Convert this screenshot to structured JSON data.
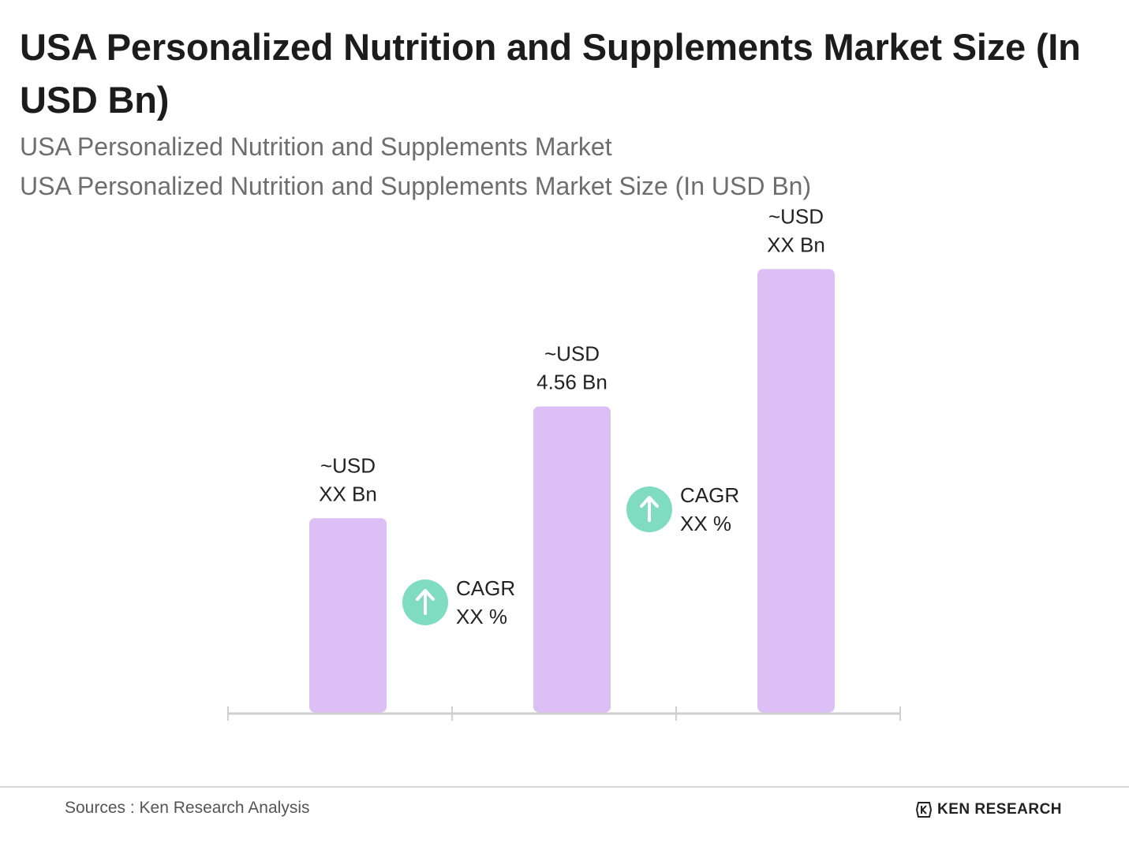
{
  "title": "USA Personalized Nutrition and Supplements Market Size (In USD Bn)",
  "subtitle_lines": [
    "USA Personalized Nutrition and Supplements Market",
    "USA Personalized Nutrition and Supplements Market Size (In USD Bn)"
  ],
  "chart_data": {
    "type": "bar",
    "categories": [
      "",
      "",
      ""
    ],
    "values": [
      2.9,
      4.56,
      6.6
    ],
    "value_labels": [
      [
        "~USD",
        "XX Bn"
      ],
      [
        "~USD",
        "4.56 Bn"
      ],
      [
        "~USD",
        "XX Bn"
      ]
    ],
    "cagr_labels": [
      [
        "CAGR",
        "XX %"
      ],
      [
        "CAGR",
        "XX %"
      ]
    ],
    "ylim": [
      0,
      7.2
    ],
    "grid": false,
    "bar_color": "#dcc0f5",
    "axis_color": "#cfcfcf",
    "cagr_icon_color": "#7fdcc0",
    "cagr_icon": "arrow-up-icon"
  },
  "footer": {
    "source": "Sources : Ken Research Analysis",
    "brand": "KEN RESEARCH",
    "brand_icon": "ken-research-logo-icon"
  }
}
